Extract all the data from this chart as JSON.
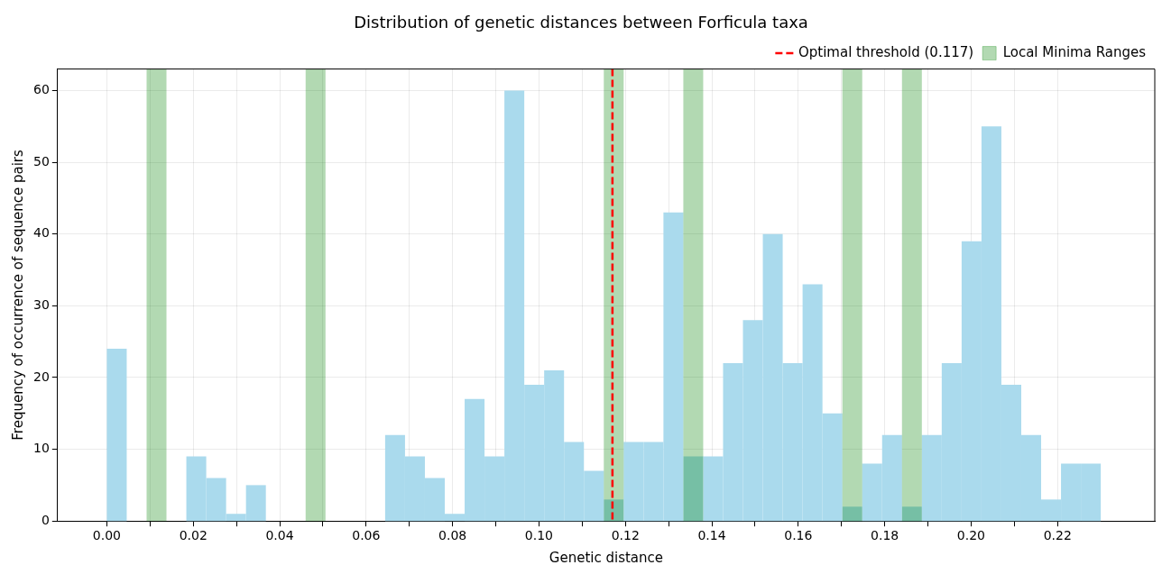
{
  "chart_data": {
    "type": "histogram",
    "title": "Distribution of genetic distances between Forficula taxa",
    "xlabel": "Genetic distance",
    "ylabel": "Frequency of occurrence of sequence pairs",
    "bins": [
      0,
      0.0046,
      0.0092,
      0.0138,
      0.0184,
      0.023,
      0.0276,
      0.0322,
      0.0368,
      0.0414,
      0.046,
      0.0506,
      0.0552,
      0.0598,
      0.0644,
      0.069,
      0.0736,
      0.0782,
      0.0828,
      0.0874,
      0.092,
      0.0966,
      0.1012,
      0.1058,
      0.1104,
      0.115,
      0.1196,
      0.1242,
      0.1288,
      0.1334,
      0.138,
      0.1426,
      0.1472,
      0.1518,
      0.1564,
      0.161,
      0.1656,
      0.1702,
      0.1748,
      0.1794,
      0.184,
      0.1886,
      0.1932,
      0.1978,
      0.2024,
      0.207,
      0.2116,
      0.2162,
      0.2208,
      0.2254,
      0.23
    ],
    "values": [
      24,
      0,
      0,
      0,
      9,
      6,
      1,
      5,
      0,
      0,
      0,
      0,
      0,
      0,
      12,
      9,
      6,
      1,
      17,
      9,
      60,
      19,
      21,
      11,
      7,
      3,
      11,
      11,
      43,
      9,
      9,
      22,
      28,
      40,
      22,
      33,
      15,
      2,
      8,
      12,
      2,
      12,
      22,
      39,
      55,
      19,
      12,
      3,
      8,
      8
    ],
    "color": "#aadaed",
    "xlim": [
      -0.0114,
      0.2425
    ],
    "ylim": [
      0,
      63
    ],
    "xticks": [
      {
        "value": 0,
        "label": "0.00"
      },
      {
        "value": 0.01,
        "label": null
      },
      {
        "value": 0.02,
        "label": "0.02"
      },
      {
        "value": 0.03,
        "label": null
      },
      {
        "value": 0.04,
        "label": "0.04"
      },
      {
        "value": 0.05,
        "label": null
      },
      {
        "value": 0.06,
        "label": "0.06"
      },
      {
        "value": 0.07,
        "label": null
      },
      {
        "value": 0.08,
        "label": "0.08"
      },
      {
        "value": 0.09,
        "label": null
      },
      {
        "value": 0.1,
        "label": "0.10"
      },
      {
        "value": 0.11,
        "label": null
      },
      {
        "value": 0.12,
        "label": "0.12"
      },
      {
        "value": 0.13,
        "label": null
      },
      {
        "value": 0.14,
        "label": "0.14"
      },
      {
        "value": 0.15,
        "label": null
      },
      {
        "value": 0.16,
        "label": "0.16"
      },
      {
        "value": 0.17,
        "label": null
      },
      {
        "value": 0.18,
        "label": "0.18"
      },
      {
        "value": 0.19,
        "label": null
      },
      {
        "value": 0.2,
        "label": "0.20"
      },
      {
        "value": 0.21,
        "label": null
      },
      {
        "value": 0.22,
        "label": "0.22"
      }
    ],
    "yticks": [
      0,
      10,
      20,
      30,
      40,
      50,
      60
    ],
    "grid": true,
    "legend": "top right",
    "ref_lines": [
      {
        "axis": "x",
        "value": 0.117,
        "label": "Optimal threshold (0.117)",
        "color": "#ff0000",
        "line_style": "dashed"
      }
    ],
    "bands": [
      {
        "axis": "x",
        "from": 0.0092,
        "to": 0.0138,
        "label": "Local Minima Ranges",
        "color": "#008000"
      },
      {
        "axis": "x",
        "from": 0.046,
        "to": 0.0506,
        "color": "#008000"
      },
      {
        "axis": "x",
        "from": 0.115,
        "to": 0.1196,
        "color": "#008000"
      },
      {
        "axis": "x",
        "from": 0.1334,
        "to": 0.138,
        "color": "#008000"
      },
      {
        "axis": "x",
        "from": 0.1702,
        "to": 0.1748,
        "color": "#008000"
      },
      {
        "axis": "x",
        "from": 0.184,
        "to": 0.1886,
        "color": "#008000"
      }
    ]
  }
}
